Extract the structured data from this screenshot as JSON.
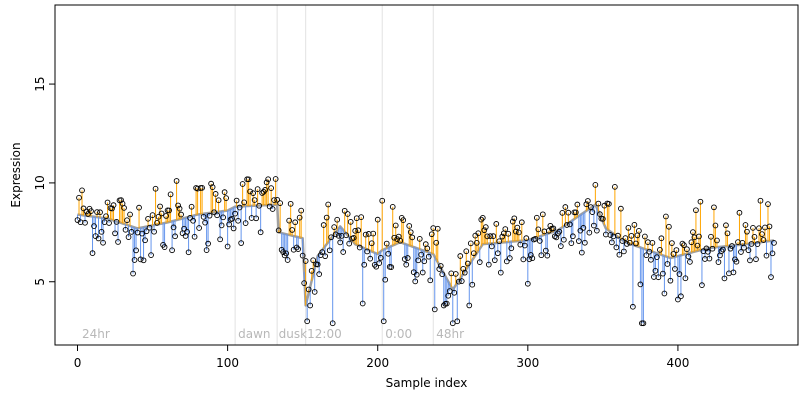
{
  "chart_data": {
    "type": "scatter",
    "xlabel": "Sample index",
    "ylabel": "Expression",
    "xlim": [
      -15,
      480
    ],
    "ylim": [
      1.8,
      19.0
    ],
    "x_ticks": [
      0,
      100,
      200,
      300,
      400
    ],
    "x_tick_labels": [
      "0",
      "100",
      "200",
      "300",
      "400"
    ],
    "y_ticks": [
      5,
      10,
      15
    ],
    "y_tick_labels": [
      "5",
      "10",
      "15"
    ],
    "phase_boundaries": [
      105,
      133,
      152,
      203,
      237
    ],
    "phase_labels": [
      {
        "label": "24hr",
        "x": 3
      },
      {
        "label": "dawn",
        "x": 107
      },
      {
        "label": "dusk",
        "x": 134
      },
      {
        "label": "12:00",
        "x": 153
      },
      {
        "label": "0:00",
        "x": 205
      },
      {
        "label": "48hr",
        "x": 239
      }
    ],
    "n_points": 465,
    "points_color": "#000000",
    "above_color": "#ffa500",
    "below_color": "#6495ed",
    "trend_color": "#a0a0a0",
    "trend_knots": [
      [
        0,
        8.4
      ],
      [
        20,
        8.2
      ],
      [
        40,
        7.7
      ],
      [
        60,
        8.0
      ],
      [
        80,
        8.4
      ],
      [
        100,
        8.6
      ],
      [
        105,
        8.8
      ],
      [
        133,
        8.9
      ],
      [
        134,
        7.5
      ],
      [
        150,
        7.2
      ],
      [
        152,
        3.8
      ],
      [
        160,
        6.3
      ],
      [
        175,
        7.8
      ],
      [
        185,
        6.9
      ],
      [
        200,
        6.4
      ],
      [
        203,
        6.6
      ],
      [
        215,
        7.0
      ],
      [
        237,
        6.4
      ],
      [
        250,
        4.6
      ],
      [
        270,
        6.9
      ],
      [
        300,
        7.1
      ],
      [
        320,
        7.6
      ],
      [
        345,
        8.9
      ],
      [
        352,
        7.7
      ],
      [
        365,
        7.0
      ],
      [
        380,
        6.6
      ],
      [
        395,
        6.2
      ],
      [
        420,
        6.7
      ],
      [
        445,
        6.9
      ],
      [
        465,
        7.1
      ]
    ],
    "deviation_sd": 0.9,
    "outliers": [
      {
        "x": 153,
        "y": 3.0
      },
      {
        "x": 155,
        "y": 3.8
      },
      {
        "x": 170,
        "y": 2.9
      },
      {
        "x": 190,
        "y": 3.9
      },
      {
        "x": 204,
        "y": 3.0
      },
      {
        "x": 238,
        "y": 3.6
      },
      {
        "x": 244,
        "y": 3.8
      },
      {
        "x": 250,
        "y": 2.9
      },
      {
        "x": 253,
        "y": 3.0
      },
      {
        "x": 300,
        "y": 4.9
      },
      {
        "x": 376,
        "y": 2.9
      },
      {
        "x": 377,
        "y": 2.9
      },
      {
        "x": 400,
        "y": 4.1
      },
      {
        "x": 358,
        "y": 9.8
      },
      {
        "x": 345,
        "y": 9.9
      },
      {
        "x": 66,
        "y": 10.1
      },
      {
        "x": 203,
        "y": 9.1
      },
      {
        "x": 149,
        "y": 8.6
      },
      {
        "x": 132,
        "y": 10.2
      },
      {
        "x": 455,
        "y": 9.1
      },
      {
        "x": 137,
        "y": 6.5
      },
      {
        "x": 86,
        "y": 6.6
      },
      {
        "x": 38,
        "y": 6.1
      },
      {
        "x": 140,
        "y": 6.1
      }
    ]
  }
}
